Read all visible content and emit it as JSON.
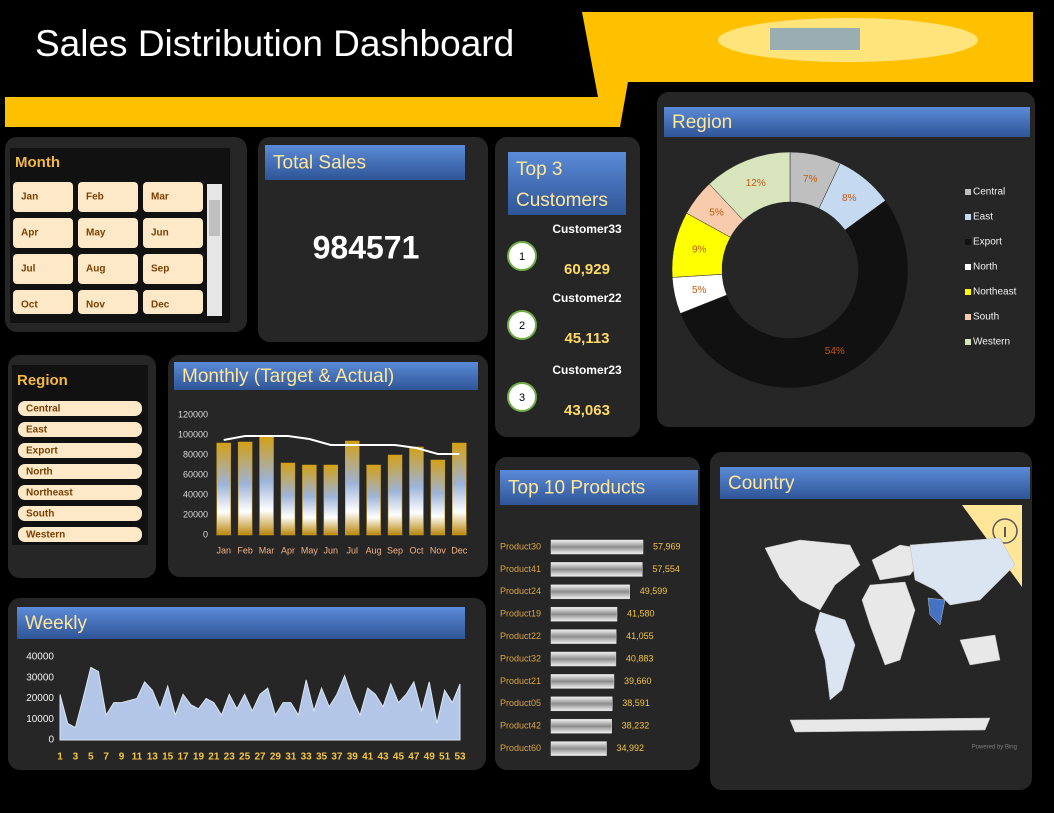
{
  "header": {
    "title": "Sales Distribution Dashboard"
  },
  "month_slicer": {
    "title": "Month",
    "items": [
      "Jan",
      "Feb",
      "Mar",
      "Apr",
      "May",
      "Jun",
      "Jul",
      "Aug",
      "Sep",
      "Oct",
      "Nov",
      "Dec"
    ]
  },
  "region_slicer": {
    "title": "Region",
    "items": [
      "Central",
      "East",
      "Export",
      "North",
      "Northeast",
      "South",
      "Western"
    ]
  },
  "total_sales": {
    "title": "Total Sales",
    "value": 984571
  },
  "top_customers": {
    "title_lines": [
      "Top 3",
      "Customers"
    ],
    "items": [
      {
        "rank": 1,
        "name": "Customer33",
        "sales": 60929,
        "sales_label": "60,929"
      },
      {
        "rank": 2,
        "name": "Customer22",
        "sales": 45113,
        "sales_label": "45,113"
      },
      {
        "rank": 3,
        "name": "Customer23",
        "sales": 43063,
        "sales_label": "43,063"
      }
    ]
  },
  "country_map": {
    "title": "Country",
    "credit": "Powered by Bing"
  },
  "chart_data": [
    {
      "type": "pie",
      "title": "Region",
      "donut": true,
      "legend": "right",
      "categories": [
        "Central",
        "East",
        "Export",
        "North",
        "Northeast",
        "South",
        "Western"
      ],
      "values": [
        7,
        8,
        54,
        5,
        9,
        5,
        12
      ],
      "value_labels": [
        "7%",
        "8%",
        "54%",
        "5%",
        "9%",
        "5%",
        "12%"
      ],
      "colors": [
        "#bfbfbf",
        "#c5d9f1",
        "#111111",
        "#ffffff",
        "#ffff00",
        "#f8cbad",
        "#d8e4bc"
      ]
    },
    {
      "type": "combo",
      "title": "Monthly (Target & Actual)",
      "categories": [
        "Jan",
        "Feb",
        "Mar",
        "Apr",
        "May",
        "Jun",
        "Jul",
        "Aug",
        "Sep",
        "Oct",
        "Nov",
        "Dec"
      ],
      "series": [
        {
          "type": "bar",
          "color": "#d4a017",
          "values": [
            92000,
            93000,
            98000,
            72000,
            70000,
            70000,
            94000,
            70000,
            80000,
            88000,
            75000,
            92000
          ]
        },
        {
          "type": "line",
          "color": "#ffffff",
          "values": [
            95000,
            99000,
            99000,
            99000,
            96000,
            90000,
            90000,
            90000,
            90000,
            87000,
            81000,
            81000
          ]
        }
      ],
      "ylim": [
        0,
        120000
      ],
      "yticks": [
        0,
        20000,
        40000,
        60000,
        80000,
        100000,
        120000
      ]
    },
    {
      "type": "area",
      "title": "Weekly",
      "color": "#b4c6e7",
      "x": [
        1,
        2,
        3,
        4,
        5,
        6,
        7,
        8,
        9,
        10,
        11,
        12,
        13,
        14,
        15,
        16,
        17,
        18,
        19,
        20,
        21,
        22,
        23,
        24,
        25,
        26,
        27,
        28,
        29,
        30,
        31,
        32,
        33,
        34,
        35,
        36,
        37,
        38,
        39,
        40,
        41,
        42,
        43,
        44,
        45,
        46,
        47,
        48,
        49,
        50,
        51,
        52,
        53
      ],
      "values": [
        22000,
        8000,
        6000,
        20000,
        35000,
        33000,
        12000,
        18000,
        18000,
        19000,
        20000,
        28000,
        24000,
        15000,
        26000,
        12000,
        22000,
        17000,
        15000,
        20000,
        18000,
        12000,
        22000,
        15000,
        22000,
        14000,
        22000,
        25000,
        12000,
        18000,
        18000,
        12000,
        29000,
        14000,
        25000,
        16000,
        22000,
        31000,
        20000,
        12000,
        25000,
        22000,
        16000,
        27000,
        18000,
        22000,
        28000,
        14000,
        28000,
        8000,
        24000,
        18000,
        27000
      ],
      "xlim": [
        1,
        53
      ],
      "xticks": [
        1,
        3,
        5,
        7,
        9,
        11,
        13,
        15,
        17,
        19,
        21,
        23,
        25,
        27,
        29,
        31,
        33,
        35,
        37,
        39,
        41,
        43,
        45,
        47,
        49,
        51,
        53
      ],
      "ylim": [
        0,
        40000
      ],
      "yticks": [
        0,
        10000,
        20000,
        30000,
        40000
      ]
    },
    {
      "type": "hbar",
      "title": "Top 10 Products",
      "color": "#d9d9d9",
      "categories": [
        "Product30",
        "Product41",
        "Product24",
        "Product19",
        "Product22",
        "Product32",
        "Product21",
        "Product05",
        "Product42",
        "Product60"
      ],
      "values": [
        57969,
        57554,
        49599,
        41580,
        41055,
        40883,
        39660,
        38591,
        38232,
        34992
      ],
      "value_labels": [
        "57,969",
        "57,554",
        "49,599",
        "41,580",
        "41,055",
        "40,883",
        "39,660",
        "38,591",
        "38,232",
        "34,992"
      ]
    }
  ]
}
